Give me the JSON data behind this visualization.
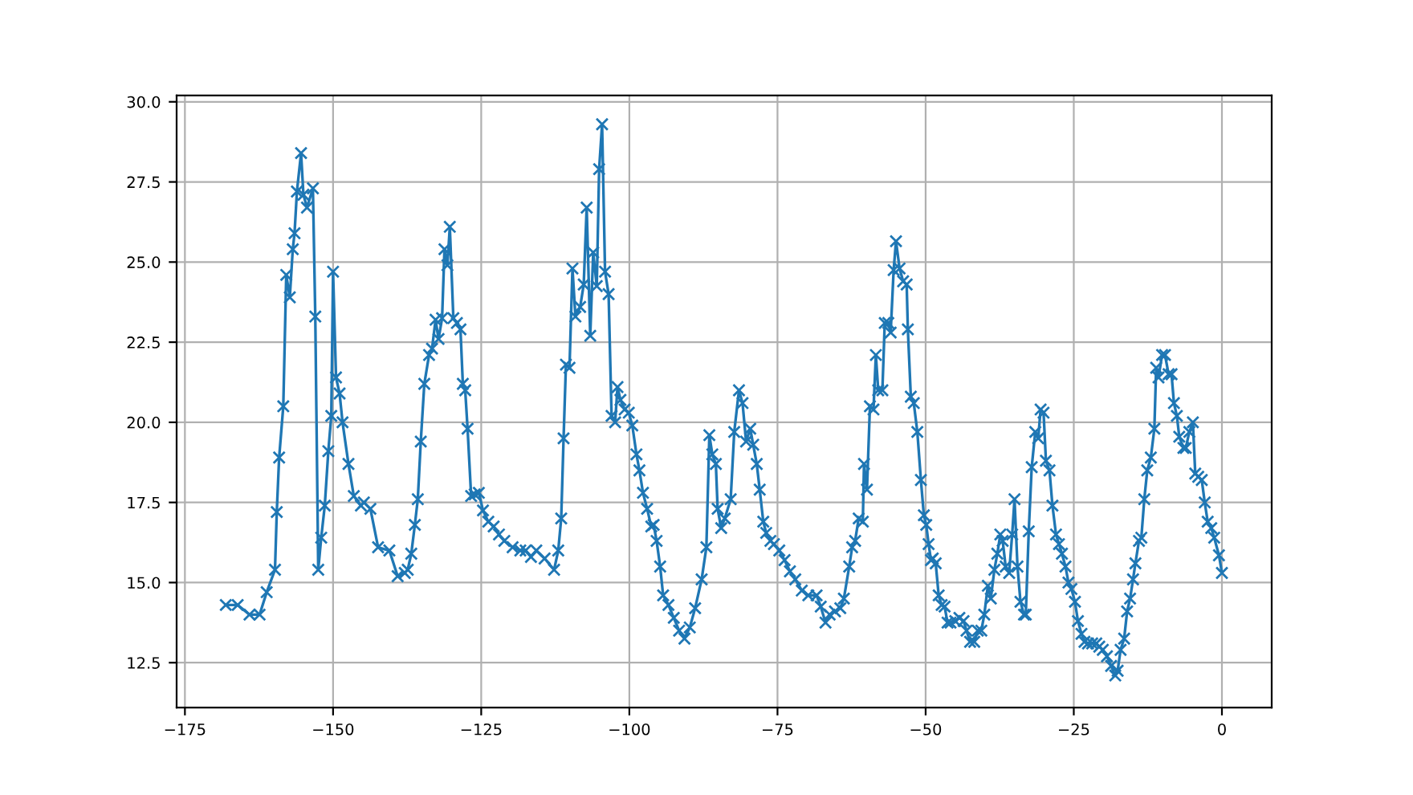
{
  "chart_data": {
    "type": "line",
    "marker": "cross",
    "line_style": "solid",
    "grid": true,
    "xlim": [
      -176.4,
      8.4
    ],
    "ylim": [
      11.1,
      30.2
    ],
    "xticks": [
      {
        "value": -175,
        "label": "−175"
      },
      {
        "value": -150,
        "label": "−150"
      },
      {
        "value": -125,
        "label": "−125"
      },
      {
        "value": -100,
        "label": "−100"
      },
      {
        "value": -75,
        "label": "−75"
      },
      {
        "value": -50,
        "label": "−50"
      },
      {
        "value": -25,
        "label": "−25"
      },
      0
    ],
    "yticks": [
      12.5,
      {
        "value": 15,
        "label": "15.0"
      },
      17.5,
      {
        "value": 20,
        "label": "20.0"
      },
      22.5,
      {
        "value": 25,
        "label": "25.0"
      },
      27.5,
      {
        "value": 30,
        "label": "30.0"
      }
    ],
    "series": [
      {
        "color": "#1f77b4",
        "x": [
          -168.1,
          -166.1,
          -164.1,
          -162.4,
          -161.2,
          -159.8,
          -159.5,
          -159.1,
          -158.4,
          -157.9,
          -157.3,
          -156.8,
          -156.5,
          -156.1,
          -155.4,
          -155.0,
          -154.4,
          -153.4,
          -153.0,
          -152.5,
          -152.0,
          -151.4,
          -150.8,
          -150.3,
          -150.0,
          -149.5,
          -148.9,
          -148.4,
          -147.4,
          -146.5,
          -145.3,
          -144.8,
          -143.7,
          -142.4,
          -140.5,
          -139.1,
          -137.9,
          -137.4,
          -136.8,
          -136.2,
          -135.7,
          -135.2,
          -134.6,
          -133.8,
          -133.3,
          -132.7,
          -132.2,
          -131.6,
          -131.2,
          -130.7,
          -130.3,
          -129.7,
          -129.1,
          -128.5,
          -128.1,
          -127.7,
          -127.3,
          -126.7,
          -126.1,
          -125.4,
          -124.7,
          -123.8,
          -122.9,
          -122.0,
          -121.1,
          -119.7,
          -118.4,
          -117.5,
          -116.6,
          -115.7,
          -114.3,
          -112.7,
          -112.0,
          -111.5,
          -111.1,
          -110.7,
          -110.1,
          -109.6,
          -109.1,
          -108.3,
          -107.7,
          -107.2,
          -106.6,
          -106.1,
          -105.5,
          -105.1,
          -104.6,
          -104.1,
          -103.5,
          -103.0,
          -102.4,
          -102.0,
          -101.5,
          -100.8,
          -100.1,
          -99.5,
          -98.8,
          -98.3,
          -97.7,
          -97.0,
          -96.3,
          -95.9,
          -95.4,
          -94.8,
          -94.3,
          -93.4,
          -92.5,
          -91.6,
          -90.7,
          -89.8,
          -88.9,
          -87.8,
          -87.0,
          -86.5,
          -86.0,
          -85.4,
          -85.1,
          -84.5,
          -83.9,
          -82.9,
          -82.3,
          -81.5,
          -80.9,
          -80.3,
          -79.6,
          -79.1,
          -78.5,
          -78.0,
          -77.4,
          -76.9,
          -76.2,
          -75.6,
          -74.7,
          -73.8,
          -72.9,
          -72.0,
          -70.9,
          -69.8,
          -68.4,
          -67.7,
          -66.9,
          -66.2,
          -65.3,
          -64.4,
          -63.8,
          -62.9,
          -62.4,
          -61.9,
          -61.3,
          -60.6,
          -60.4,
          -59.9,
          -59.4,
          -58.8,
          -58.4,
          -58.0,
          -57.3,
          -56.9,
          -56.3,
          -55.9,
          -55.4,
          -55.0,
          -54.4,
          -53.8,
          -53.2,
          -53.0,
          -52.5,
          -52.0,
          -51.4,
          -50.8,
          -50.3,
          -49.9,
          -49.5,
          -49.1,
          -48.8,
          -48.3,
          -47.8,
          -47.3,
          -46.8,
          -46.3,
          -45.8,
          -45.0,
          -44.3,
          -43.6,
          -43.1,
          -42.5,
          -41.8,
          -41.2,
          -40.6,
          -40.1,
          -39.5,
          -39.0,
          -38.4,
          -37.9,
          -37.4,
          -37.0,
          -36.5,
          -35.9,
          -35.4,
          -35.0,
          -34.5,
          -34.0,
          -33.4,
          -33.1,
          -32.6,
          -32.1,
          -31.5,
          -31.0,
          -30.6,
          -30.1,
          -29.7,
          -29.1,
          -28.6,
          -28.0,
          -27.5,
          -27.0,
          -26.4,
          -25.9,
          -25.4,
          -24.8,
          -24.3,
          -23.7,
          -23.2,
          -22.6,
          -21.9,
          -21.2,
          -20.7,
          -20.1,
          -19.4,
          -18.7,
          -18.0,
          -17.6,
          -17.1,
          -16.5,
          -16.0,
          -15.5,
          -15.0,
          -14.6,
          -14.0,
          -13.6,
          -13.1,
          -12.6,
          -12.0,
          -11.4,
          -11.1,
          -10.7,
          -10.1,
          -9.6,
          -9.0,
          -8.5,
          -8.1,
          -7.6,
          -7.2,
          -6.5,
          -6.1,
          -5.5,
          -4.9,
          -4.5,
          -4.0,
          -3.4,
          -2.9,
          -2.4,
          -1.8,
          -1.3,
          -0.5,
          0.0
        ],
        "values": [
          14.3,
          14.3,
          14.0,
          14.0,
          14.7,
          15.4,
          17.2,
          18.9,
          20.5,
          24.6,
          23.9,
          25.4,
          25.9,
          27.2,
          28.4,
          27.1,
          26.7,
          27.3,
          23.3,
          15.4,
          16.4,
          17.4,
          19.1,
          20.2,
          24.7,
          21.4,
          20.9,
          20.0,
          18.7,
          17.7,
          17.4,
          17.5,
          17.3,
          16.1,
          16.0,
          15.2,
          15.3,
          15.4,
          15.9,
          16.8,
          17.6,
          19.4,
          21.2,
          22.1,
          22.3,
          23.2,
          22.6,
          23.25,
          25.4,
          24.9,
          26.1,
          23.25,
          23.1,
          22.9,
          21.2,
          21.0,
          19.8,
          17.7,
          17.75,
          17.8,
          17.25,
          16.9,
          16.75,
          16.5,
          16.3,
          16.1,
          16.0,
          16.0,
          15.8,
          16.0,
          15.75,
          15.4,
          16.0,
          17.0,
          19.5,
          21.8,
          21.7,
          24.8,
          23.3,
          23.6,
          24.3,
          26.7,
          22.7,
          25.3,
          24.25,
          27.9,
          29.3,
          24.7,
          24.0,
          20.2,
          20.0,
          21.1,
          20.7,
          20.4,
          20.3,
          19.9,
          19.0,
          18.5,
          17.8,
          17.3,
          16.75,
          16.8,
          16.3,
          15.5,
          14.6,
          14.3,
          13.9,
          13.5,
          13.25,
          13.6,
          14.2,
          15.1,
          16.1,
          19.6,
          19.0,
          18.7,
          17.3,
          16.7,
          17.0,
          17.6,
          19.7,
          21.0,
          20.6,
          19.4,
          19.8,
          19.3,
          18.7,
          17.9,
          16.9,
          16.55,
          16.3,
          16.2,
          16.0,
          15.7,
          15.35,
          15.1,
          14.75,
          14.6,
          14.6,
          14.25,
          13.75,
          14.0,
          14.1,
          14.2,
          14.5,
          15.5,
          16.1,
          16.3,
          17.0,
          16.9,
          18.7,
          17.9,
          20.5,
          20.4,
          22.1,
          21.0,
          21.0,
          23.1,
          23.1,
          22.8,
          24.75,
          25.65,
          24.8,
          24.4,
          24.3,
          22.9,
          20.8,
          20.6,
          19.7,
          18.2,
          17.1,
          16.8,
          16.2,
          15.7,
          15.75,
          15.6,
          14.6,
          14.3,
          14.25,
          13.75,
          13.75,
          13.8,
          13.9,
          13.8,
          13.5,
          13.15,
          13.15,
          13.5,
          13.5,
          14.0,
          14.9,
          14.5,
          15.4,
          15.9,
          16.5,
          16.3,
          15.5,
          15.3,
          16.5,
          17.6,
          15.5,
          14.4,
          14.0,
          14.0,
          16.6,
          18.6,
          19.7,
          19.5,
          20.4,
          20.3,
          18.8,
          18.5,
          17.4,
          16.5,
          16.2,
          15.9,
          15.5,
          15.0,
          14.8,
          14.4,
          13.8,
          13.4,
          13.15,
          13.1,
          13.1,
          13.1,
          13.0,
          12.9,
          12.7,
          12.4,
          12.1,
          12.25,
          12.9,
          13.25,
          14.1,
          14.5,
          15.1,
          15.6,
          16.3,
          16.4,
          17.6,
          18.5,
          18.9,
          19.8,
          21.7,
          21.4,
          22.1,
          22.1,
          21.5,
          21.5,
          20.6,
          20.2,
          19.55,
          19.2,
          19.2,
          19.7,
          20.0,
          18.4,
          18.3,
          18.2,
          17.5,
          16.9,
          16.7,
          16.4,
          15.85,
          15.3
        ]
      }
    ]
  }
}
